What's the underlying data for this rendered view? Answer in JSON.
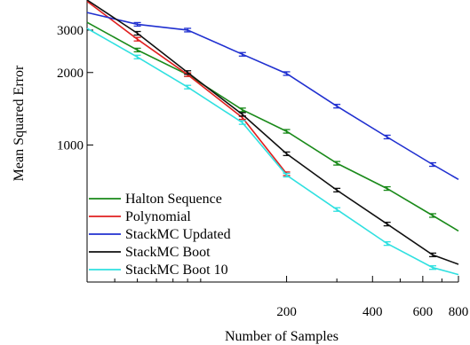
{
  "chart_data": {
    "type": "line",
    "xlabel": "Number of Samples",
    "ylabel": "Mean Squared Error",
    "x_scale": "log",
    "y_scale": "log",
    "xlim": [
      40,
      800
    ],
    "ylim": [
      270,
      4000
    ],
    "x_ticks": [
      200,
      400,
      600,
      800
    ],
    "x_minor_ticks": [
      50,
      60,
      70,
      80,
      90,
      100,
      300,
      500,
      700
    ],
    "y_ticks": [
      1000,
      2000,
      3000
    ],
    "legend_location": "lower-left",
    "grid": false,
    "series": [
      {
        "name": "Halton Sequence",
        "color": "#1a8a1a",
        "x": [
          40,
          60,
          90,
          140,
          200,
          300,
          450,
          650,
          800
        ],
        "y": [
          3230,
          2480,
          1960,
          1400,
          1140,
          840,
          660,
          510,
          440
        ]
      },
      {
        "name": "Polynomial",
        "color": "#e02020",
        "x": [
          40,
          60,
          90,
          140,
          200
        ],
        "y": [
          3950,
          2750,
          1960,
          1300,
          760
        ]
      },
      {
        "name": "StackMC Updated",
        "color": "#2030d0",
        "x": [
          40,
          60,
          90,
          140,
          200,
          300,
          450,
          650,
          800
        ],
        "y": [
          3550,
          3170,
          3000,
          2380,
          1980,
          1450,
          1080,
          830,
          720
        ]
      },
      {
        "name": "StackMC Boot",
        "color": "#101010",
        "x": [
          40,
          60,
          90,
          140,
          200,
          300,
          450,
          650,
          800
        ],
        "y": [
          4000,
          2910,
          2000,
          1340,
          920,
          650,
          470,
          350,
          320
        ]
      },
      {
        "name": "StackMC Boot 10",
        "color": "#30e0e0",
        "x": [
          40,
          60,
          90,
          140,
          200,
          300,
          450,
          650,
          800
        ],
        "y": [
          3050,
          2320,
          1740,
          1240,
          750,
          540,
          390,
          310,
          290
        ]
      }
    ]
  }
}
